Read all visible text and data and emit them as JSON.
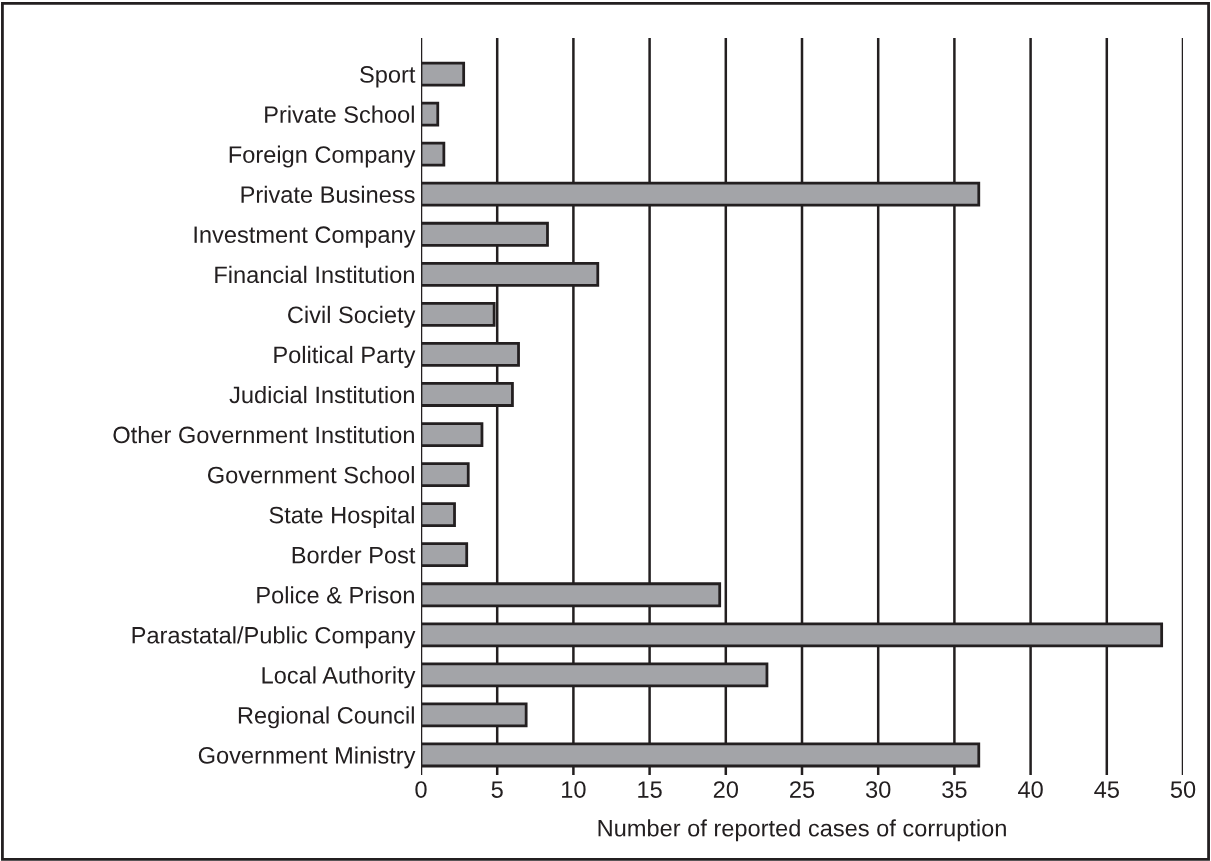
{
  "chart_data": {
    "type": "bar",
    "orientation": "horizontal",
    "xlabel": "Number of reported cases of corruption",
    "categories": [
      "Sport",
      "Private School",
      "Foreign Company",
      "Private Business",
      "Investment Company",
      "Financial Institution",
      "Civil Society",
      "Political Party",
      "Judicial Institution",
      "Other Government Institution",
      "Government School",
      "State Hospital",
      "Border Post",
      "Police & Prison",
      "Parastatal/Public Company",
      "Local Authority",
      "Regional Council",
      "Government Ministry"
    ],
    "values": [
      2.8,
      1.1,
      1.5,
      36.6,
      8.3,
      11.6,
      4.8,
      6.4,
      6.0,
      4.0,
      3.1,
      2.2,
      3.0,
      19.6,
      48.6,
      22.7,
      6.9,
      36.6
    ],
    "color": "#a3a4a8",
    "xlim": [
      0,
      50
    ],
    "xticks": [
      0,
      5,
      10,
      15,
      20,
      25,
      30,
      35,
      40,
      45,
      50
    ],
    "grid": "x"
  }
}
